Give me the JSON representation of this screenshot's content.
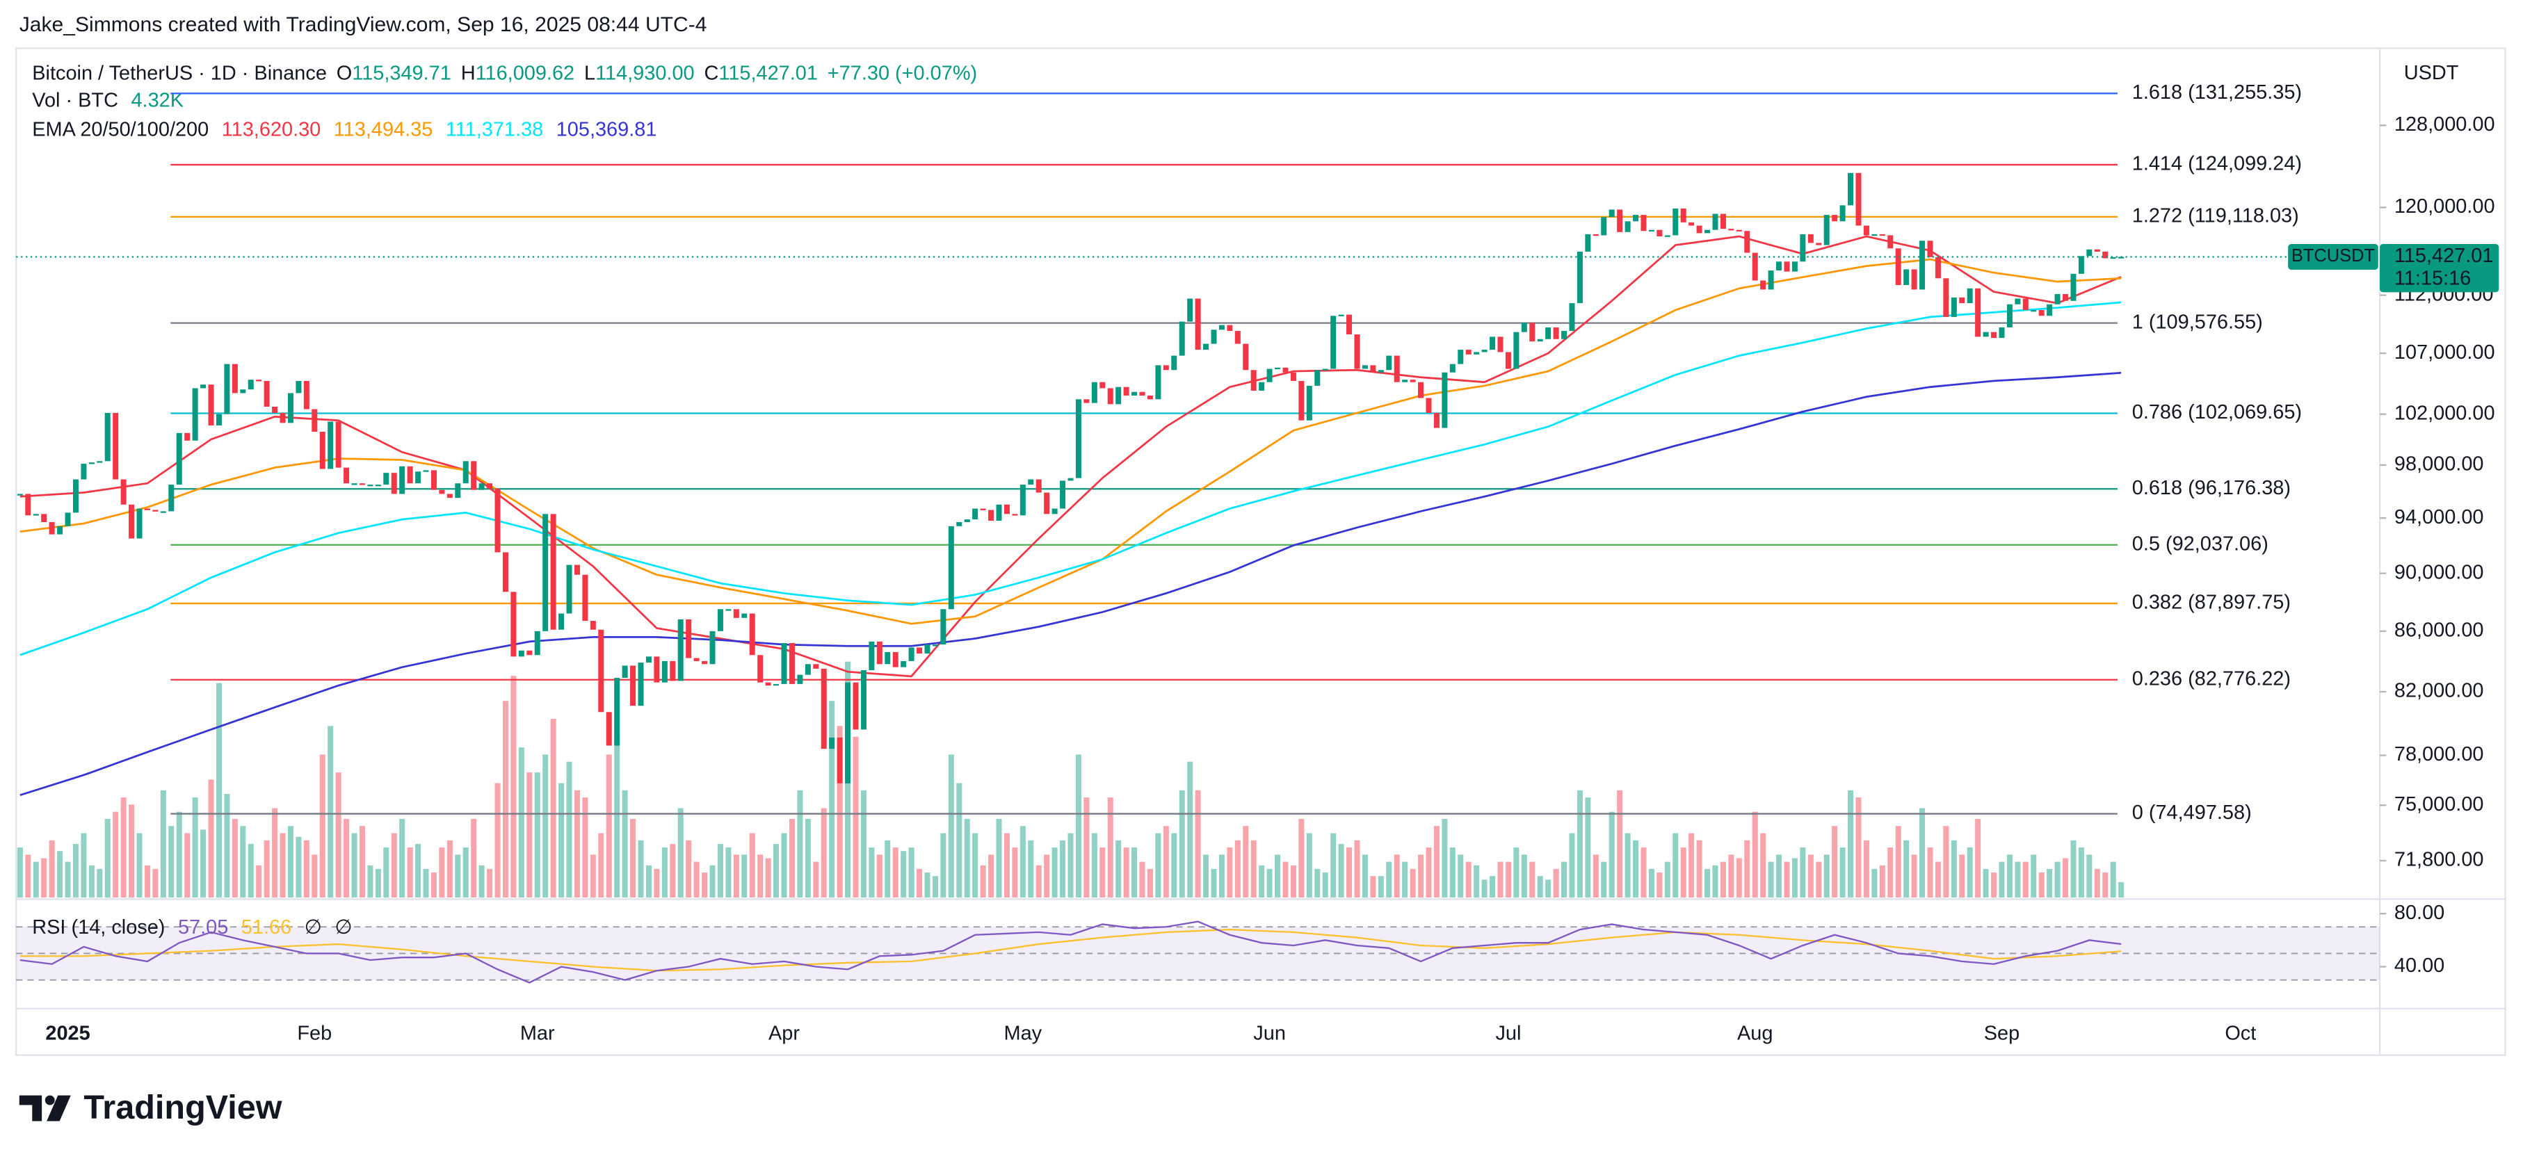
{
  "header": "Jake_Simmons created with TradingView.com, Sep 16, 2025 08:44 UTC-4",
  "chart_data": {
    "type": "candlestick",
    "title": "Bitcoin / TetherUS · 1D · Binance",
    "ohlc": [
      {
        "key": "O",
        "value": "115,349.71"
      },
      {
        "key": "H",
        "value": "116,009.62"
      },
      {
        "key": "L",
        "value": "114,930.00"
      },
      {
        "key": "C",
        "value": "115,427.01"
      }
    ],
    "change": "+77.30 (+0.07%)",
    "volume_title": "Vol · BTC",
    "volume_last": "4.32K",
    "ema_title": "EMA 20/50/100/200",
    "up_color": "#089981",
    "down_color": "#f23645",
    "categories": [
      null,
      null,
      null,
      null,
      null,
      null,
      "2025",
      null,
      null,
      null,
      null,
      null,
      null,
      null,
      null,
      null,
      null,
      null,
      null,
      null,
      null,
      null,
      null,
      null,
      null,
      null,
      null,
      null,
      null,
      null,
      null,
      null,
      null,
      null,
      null,
      null,
      null,
      "Feb",
      null,
      null,
      null,
      null,
      null,
      null,
      null,
      null,
      null,
      null,
      null,
      null,
      null,
      null,
      null,
      null,
      null,
      null,
      null,
      null,
      null,
      null,
      null,
      null,
      null,
      null,
      null,
      "Mar",
      null,
      null,
      null,
      null,
      null,
      null,
      null,
      null,
      null,
      null,
      null,
      null,
      null,
      null,
      null,
      null,
      null,
      null,
      null,
      null,
      null,
      null,
      null,
      null,
      null,
      null,
      null,
      null,
      null,
      null,
      "Apr",
      null,
      null,
      null,
      null,
      null,
      null,
      null,
      null,
      null,
      null,
      null,
      null,
      null,
      null,
      null,
      null,
      null,
      null,
      null,
      null,
      null,
      null,
      null,
      null,
      null,
      null,
      null,
      null,
      null,
      "May",
      null,
      null,
      null,
      null,
      null,
      null,
      null,
      null,
      null,
      null,
      null,
      null,
      null,
      null,
      null,
      null,
      null,
      null,
      null,
      null,
      null,
      null,
      null,
      null,
      null,
      null,
      null,
      null,
      null,
      null,
      "Jun",
      null,
      null,
      null,
      null,
      null,
      null,
      null,
      null,
      null,
      null,
      null,
      null,
      null,
      null,
      null,
      null,
      null,
      null,
      null,
      null,
      null,
      null,
      null,
      null,
      null,
      null,
      null,
      null,
      null,
      "Jul",
      null,
      null,
      null,
      null,
      null,
      null,
      null,
      null,
      null,
      null,
      null,
      null,
      null,
      null,
      null,
      null,
      null,
      null,
      null,
      null,
      null,
      null,
      null,
      null,
      null,
      null,
      null,
      null,
      null,
      null,
      "Aug",
      null,
      null,
      null,
      null,
      null,
      null,
      null,
      null,
      null,
      null,
      null,
      null,
      null,
      null,
      null,
      null,
      null,
      null,
      null,
      null,
      null,
      null,
      null,
      null,
      null,
      null,
      null,
      null,
      null,
      null,
      "Sep",
      null,
      null,
      null,
      null,
      null,
      null,
      null,
      null,
      null,
      null,
      null,
      null,
      null,
      null,
      null,
      null,
      null,
      null,
      null,
      null,
      null,
      null,
      null,
      null,
      null,
      null,
      null,
      null,
      null,
      "Oct",
      null,
      null,
      null,
      null,
      null,
      null,
      null,
      null,
      null,
      null,
      null,
      null,
      null,
      null,
      null,
      null,
      null
    ],
    "values": [
      95800,
      94200,
      94300,
      93700,
      92800,
      93400,
      94400,
      96900,
      98100,
      98200,
      98300,
      102100,
      96900,
      95000,
      92500,
      94700,
      94600,
      94500,
      94500,
      96500,
      100500,
      99900,
      104100,
      104400,
      101100,
      102000,
      106100,
      103700,
      104000,
      104800,
      104700,
      102600,
      102100,
      101300,
      103700,
      104700,
      102400,
      100600,
      97700,
      101400,
      97800,
      96600,
      96600,
      96500,
      96500,
      96500,
      97400,
      95800,
      97900,
      96600,
      97500,
      97600,
      96100,
      95800,
      95500,
      96600,
      98300,
      96100,
      96600,
      96200,
      91500,
      88700,
      84300,
      84700,
      84400,
      86000,
      94300,
      86100,
      87200,
      90600,
      89900,
      86700,
      86100,
      80700,
      78600,
      82900,
      83700,
      81100,
      83900,
      84300,
      82600,
      84000,
      82700,
      86800,
      84200,
      84000,
      83800,
      86000,
      87500,
      87500,
      86900,
      87200,
      84400,
      82600,
      82400,
      82500,
      85200,
      82500,
      83100,
      83800,
      83500,
      78400,
      79100,
      76300,
      82600,
      79600,
      83400,
      85300,
      83800,
      84600,
      83600,
      84000,
      84900,
      84500,
      85100,
      85100,
      87500,
      93400,
      93700,
      93900,
      94700,
      94600,
      93800,
      95000,
      94300,
      94200,
      96500,
      96900,
      95900,
      94300,
      94700,
      96800,
      97000,
      103200,
      102900,
      104600,
      104100,
      102800,
      104200,
      103500,
      103800,
      103500,
      103200,
      106000,
      105600,
      106800,
      109700,
      111700,
      107300,
      107800,
      109000,
      109400,
      108900,
      107800,
      105600,
      103900,
      104600,
      105700,
      105800,
      105400,
      104700,
      101500,
      104300,
      105600,
      105700,
      110200,
      110300,
      108600,
      105700,
      106000,
      105400,
      105600,
      106800,
      104600,
      104800,
      104600,
      103300,
      102100,
      100900,
      105400,
      106100,
      107300,
      106900,
      107100,
      107300,
      108400,
      107100,
      105700,
      108800,
      109600,
      108000,
      108200,
      109200,
      108200,
      108900,
      111300,
      115900,
      117500,
      117400,
      119100,
      119800,
      117700,
      118700,
      119300,
      117800,
      117900,
      117300,
      117400,
      119900,
      118600,
      118300,
      117600,
      117900,
      119400,
      118000,
      117900,
      117800,
      115800,
      113300,
      112500,
      114200,
      115000,
      114100,
      115000,
      117500,
      116700,
      116500,
      119300,
      118700,
      120200,
      123300,
      118300,
      117400,
      117500,
      117400,
      116200,
      112900,
      114300,
      112500,
      116900,
      115400,
      113500,
      110100,
      111800,
      111300,
      112600,
      108400,
      108800,
      108300,
      109200,
      111200,
      111700,
      110700,
      110700,
      110200,
      111200,
      112100,
      111500,
      113900,
      115500,
      116100,
      115900,
      115300,
      115400,
      115427.01,
      null,
      null,
      null,
      null,
      null,
      null,
      null,
      null,
      null,
      null,
      null,
      null,
      null,
      null,
      null,
      null,
      null,
      null,
      null,
      null,
      null,
      null,
      null,
      null,
      null,
      null,
      null,
      null,
      null,
      null,
      null,
      null
    ],
    "volumes": [
      14,
      12,
      10,
      11,
      16,
      13,
      10,
      15,
      18,
      9,
      8,
      22,
      24,
      28,
      26,
      18,
      9,
      8,
      30,
      20,
      24,
      18,
      28,
      19,
      33,
      60,
      29,
      22,
      20,
      15,
      9,
      16,
      25,
      18,
      20,
      17,
      16,
      12,
      40,
      48,
      35,
      22,
      18,
      20,
      9,
      8,
      14,
      18,
      22,
      14,
      15,
      8,
      7,
      14,
      16,
      12,
      14,
      22,
      9,
      8,
      32,
      55,
      62,
      42,
      35,
      35,
      40,
      50,
      32,
      38,
      30,
      28,
      12,
      18,
      40,
      45,
      30,
      22,
      16,
      9,
      8,
      14,
      15,
      25,
      16,
      10,
      7,
      9,
      15,
      14,
      12,
      12,
      18,
      12,
      11,
      15,
      18,
      22,
      30,
      22,
      10,
      25,
      55,
      48,
      66,
      45,
      30,
      14,
      12,
      16,
      14,
      13,
      14,
      8,
      7,
      6,
      18,
      40,
      32,
      22,
      18,
      9,
      12,
      22,
      18,
      14,
      20,
      16,
      9,
      12,
      14,
      16,
      18,
      40,
      28,
      18,
      14,
      28,
      16,
      14,
      14,
      10,
      8,
      18,
      20,
      18,
      30,
      38,
      30,
      12,
      8,
      12,
      14,
      16,
      20,
      16,
      9,
      8,
      12,
      10,
      9,
      22,
      18,
      8,
      7,
      18,
      15,
      14,
      16,
      12,
      6,
      6,
      10,
      12,
      10,
      8,
      12,
      14,
      20,
      22,
      14,
      12,
      10,
      9,
      5,
      6,
      10,
      10,
      14,
      12,
      10,
      6,
      5,
      8,
      10,
      18,
      30,
      28,
      12,
      10,
      24,
      30,
      18,
      16,
      14,
      8,
      7,
      10,
      18,
      14,
      18,
      16,
      8,
      9,
      10,
      12,
      11,
      16,
      24,
      18,
      10,
      12,
      10,
      11,
      14,
      12,
      10,
      12,
      20,
      14,
      30,
      28,
      16,
      8,
      9,
      14,
      20,
      16,
      12,
      25,
      14,
      10,
      20,
      16,
      12,
      14,
      22,
      8,
      7,
      10,
      12,
      10,
      10,
      12,
      7,
      8,
      10,
      11,
      16,
      14,
      12,
      8,
      7,
      10,
      4.32,
      null,
      null,
      null,
      null,
      null,
      null,
      null,
      null,
      null,
      null,
      null,
      null,
      null,
      null,
      null,
      null,
      null,
      null,
      null,
      null,
      null,
      null,
      null,
      null,
      null,
      null,
      null,
      null,
      null,
      null,
      null,
      null
    ],
    "volume_ylim": [
      0,
      63
    ],
    "log_scale": true,
    "ylim": [
      69750,
      136000
    ],
    "yticks": [
      {
        "value": 128000,
        "label": "128,000.00"
      },
      {
        "value": 120000,
        "label": "120,000.00"
      },
      {
        "value": 112000,
        "label": "112,000.00"
      },
      {
        "value": 107000,
        "label": "107,000.00"
      },
      {
        "value": 102000,
        "label": "102,000.00"
      },
      {
        "value": 98000,
        "label": "98,000.00"
      },
      {
        "value": 94000,
        "label": "94,000.00"
      },
      {
        "value": 90000,
        "label": "90,000.00"
      },
      {
        "value": 86000,
        "label": "86,000.00"
      },
      {
        "value": 82000,
        "label": "82,000.00"
      },
      {
        "value": 78000,
        "label": "78,000.00"
      },
      {
        "value": 75000,
        "label": "75,000.00"
      },
      {
        "value": 71800,
        "label": "71,800.00"
      }
    ],
    "price_unit": "USDT",
    "last_price": {
      "value": 115427.01,
      "label": "115,427.01"
    },
    "symbol": "BTCUSDT",
    "countdown": "11:15:16",
    "ema_series": [
      {
        "color": "#f23645",
        "legend_value": "113,620.30",
        "values": [
          95600,
          95900,
          96600,
          100000,
          101800,
          101500,
          99000,
          97600,
          94000,
          90500,
          86200,
          85500,
          84800,
          83300,
          83000,
          88000,
          92500,
          97000,
          101000,
          104200,
          105500,
          105600,
          105000,
          104600,
          107000,
          111500,
          116500,
          117300,
          115700,
          117300,
          116000,
          112300,
          111300,
          113620.3
        ]
      },
      {
        "color": "#ff9800",
        "legend_value": "113,494.35",
        "values": [
          93000,
          93600,
          94800,
          96500,
          97800,
          98500,
          98400,
          97600,
          94600,
          91800,
          89900,
          89000,
          88200,
          87400,
          86500,
          87000,
          89000,
          91000,
          94500,
          97500,
          100700,
          102100,
          103500,
          104300,
          105500,
          108000,
          110700,
          112600,
          113600,
          114600,
          115200,
          114000,
          113200,
          113494.35
        ]
      },
      {
        "color": "#00e5ff",
        "legend_value": "111,371.38",
        "values": [
          84400,
          85900,
          87500,
          89700,
          91500,
          92900,
          93900,
          94400,
          93200,
          91700,
          90500,
          89300,
          88600,
          88100,
          87800,
          88500,
          89700,
          91000,
          92900,
          94700,
          96000,
          97200,
          98400,
          99600,
          101000,
          103100,
          105200,
          106800,
          107900,
          109100,
          110100,
          110500,
          110900,
          111371.38
        ]
      },
      {
        "color": "#3535d4",
        "legend_value": "105,369.81",
        "values": [
          75600,
          76800,
          78200,
          79600,
          81000,
          82400,
          83600,
          84500,
          85300,
          85600,
          85600,
          85400,
          85100,
          85000,
          85000,
          85500,
          86300,
          87300,
          88600,
          90100,
          92000,
          93300,
          94500,
          95600,
          96800,
          98100,
          99500,
          100800,
          102200,
          103400,
          104200,
          104700,
          105000,
          105369.81
        ]
      }
    ],
    "fib_levels": [
      {
        "value": 131255.35,
        "label": "1.618 (131,255.35)",
        "color": "#2962ff"
      },
      {
        "value": 124099.24,
        "label": "1.414 (124,099.24)",
        "color": "#f23645"
      },
      {
        "value": 119118.03,
        "label": "1.272 (119,118.03)",
        "color": "#ff9800"
      },
      {
        "value": 109576.55,
        "label": "1 (109,576.55)",
        "color": "#787b86"
      },
      {
        "value": 102069.65,
        "label": "0.786 (102,069.65)",
        "color": "#00bcd4"
      },
      {
        "value": 96176.38,
        "label": "0.618 (96,176.38)",
        "color": "#089981"
      },
      {
        "value": 92037.06,
        "label": "0.5 (92,037.06)",
        "color": "#4caf50"
      },
      {
        "value": 87897.75,
        "label": "0.382 (87,897.75)",
        "color": "#ff9800"
      },
      {
        "value": 82776.22,
        "label": "0.236 (82,776.22)",
        "color": "#f23645"
      },
      {
        "value": 74497.58,
        "label": "0 (74,497.58)",
        "color": "#787b86"
      }
    ],
    "rsi": {
      "title": "RSI (14, close)",
      "value_label": "57.05",
      "ma_label": "51.66",
      "na_labels": [
        "∅",
        "∅"
      ],
      "color": "#7e57c2",
      "ma_color": "#fbc02d",
      "ylim": [
        8.5,
        89.7
      ],
      "yticks": [
        {
          "value": 80,
          "label": "80.00"
        },
        {
          "value": 40,
          "label": "40.00"
        }
      ],
      "bands": [
        70,
        50,
        30
      ],
      "values": [
        45,
        42,
        55,
        48,
        44,
        58,
        66,
        60,
        55,
        50,
        50,
        45,
        47,
        47,
        50,
        38,
        28,
        40,
        36,
        30,
        37,
        40,
        46,
        42,
        44,
        40,
        38,
        48,
        49,
        52,
        64,
        65,
        66,
        64,
        72,
        69,
        70,
        74,
        64,
        58,
        56,
        60,
        56,
        54,
        44,
        54,
        56,
        58,
        58,
        68,
        72,
        68,
        66,
        64,
        56,
        46,
        56,
        64,
        58,
        50,
        48,
        44,
        42,
        48,
        52,
        60,
        57.05
      ],
      "ma_values": [
        48,
        48,
        50,
        52,
        55,
        57,
        53,
        48,
        44,
        40,
        37,
        38,
        41,
        43,
        44,
        50,
        57,
        62,
        66,
        68,
        66,
        62,
        56,
        54,
        57,
        62,
        66,
        64,
        60,
        57,
        52,
        46,
        48,
        51.66
      ]
    }
  },
  "footer": {
    "logo": "TradingView"
  }
}
